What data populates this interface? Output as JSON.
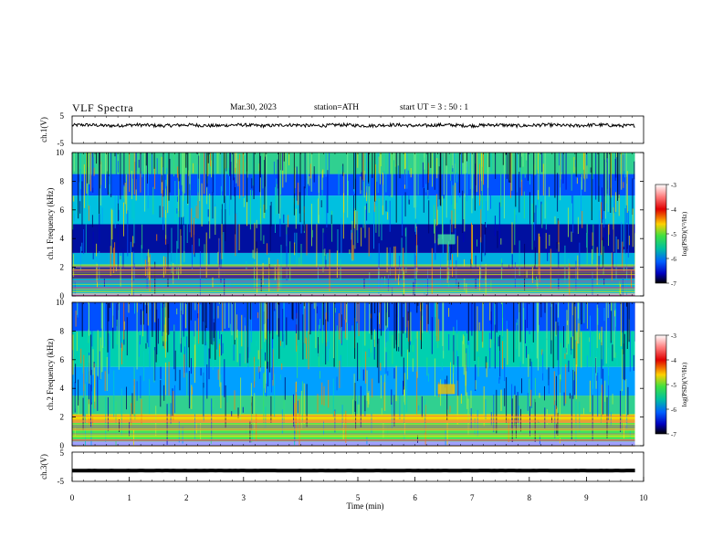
{
  "header": {
    "title": "VLF  Spectra",
    "date": "Mar.30, 2023",
    "station": "station=ATH",
    "start": "start  UT  =    3  : 50 : 1"
  },
  "chart_data": [
    {
      "type": "line",
      "panel": "ch1-waveform",
      "ylabel": "ch.1(V)",
      "ylim": [
        -5,
        5
      ],
      "y_ticks": [
        "5",
        "-5"
      ],
      "xlim": [
        0,
        10
      ],
      "series": [
        {
          "mean_value": 1.6,
          "approx_amplitude": 0.6
        }
      ]
    },
    {
      "type": "heatmap",
      "panel": "ch1-spectrogram",
      "ylabel": "ch.1\nFrequency  (kHz)",
      "ylim": [
        0,
        10
      ],
      "y_ticks": [
        "0",
        "2",
        "4",
        "6",
        "8",
        "10"
      ],
      "xlim": [
        0,
        10
      ],
      "colorbar": {
        "label": "log(PSD)(V²/Hz)",
        "range": [
          -7,
          -3
        ],
        "ticks": [
          "-3",
          "-4",
          "-5",
          "-6",
          "-7"
        ]
      }
    },
    {
      "type": "heatmap",
      "panel": "ch2-spectrogram",
      "ylabel": "ch.2\nFrequency  (kHz)",
      "ylim": [
        0,
        10
      ],
      "y_ticks": [
        "0",
        "2",
        "4",
        "6",
        "8",
        "10"
      ],
      "xlim": [
        0,
        10
      ],
      "colorbar": {
        "label": "log(PSD)(V²/Hz)",
        "range": [
          -7,
          -3
        ],
        "ticks": [
          "-3",
          "-4",
          "-5",
          "-6",
          "-7"
        ]
      }
    },
    {
      "type": "line",
      "panel": "ch3-waveform",
      "ylabel": "ch.3(V)",
      "ylim": [
        -5,
        5
      ],
      "y_ticks": [
        "5",
        "-5"
      ],
      "xlim": [
        0,
        10
      ],
      "xlabel": "Time  (min)",
      "x_ticks": [
        "0",
        "1",
        "2",
        "3",
        "4",
        "5",
        "6",
        "7",
        "8",
        "9",
        "10"
      ],
      "series": [
        {
          "mean_value": -1.3,
          "approx_amplitude": 0.05
        }
      ]
    }
  ]
}
